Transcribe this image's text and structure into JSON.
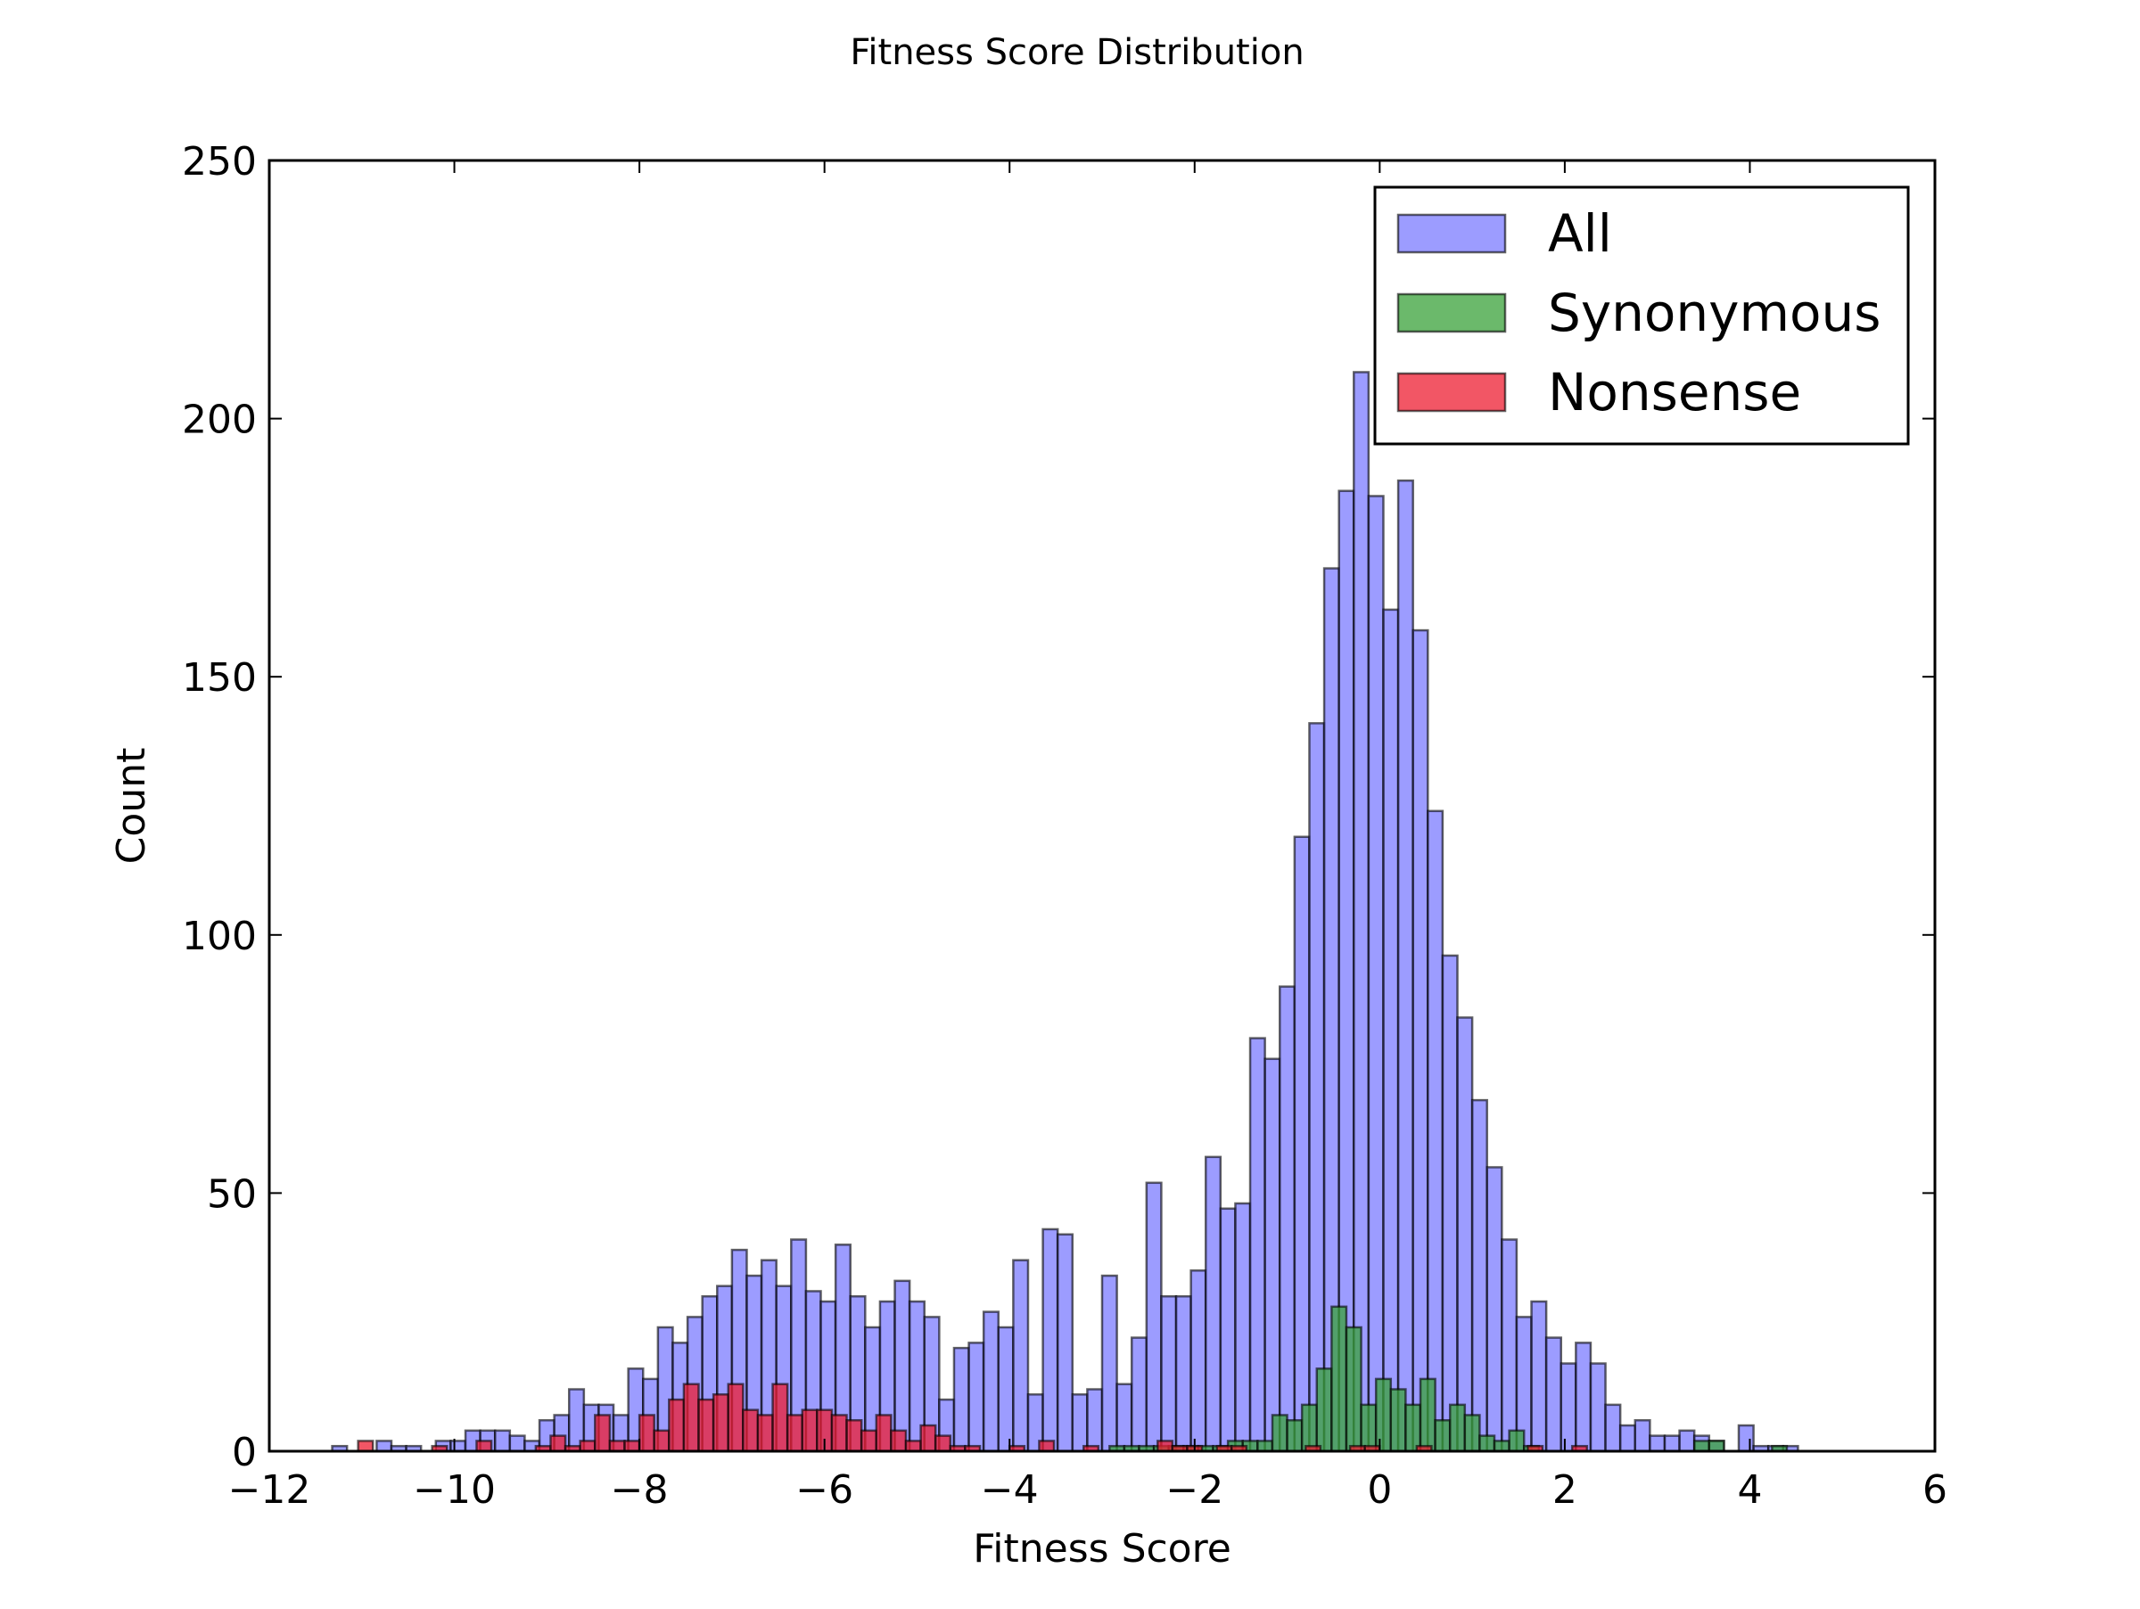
{
  "chart_data": {
    "type": "bar",
    "title": "Fitness Score Distribution",
    "xlabel": "Fitness Score",
    "ylabel": "Count",
    "xlim": [
      -12,
      6
    ],
    "ylim": [
      0,
      250
    ],
    "xticks": [
      -12,
      -10,
      -8,
      -6,
      -4,
      -2,
      0,
      2,
      4,
      6
    ],
    "xtick_labels": [
      "−12",
      "−10",
      "−8",
      "−6",
      "−4",
      "−2",
      "0",
      "2",
      "4",
      "6"
    ],
    "yticks": [
      0,
      50,
      100,
      150,
      200,
      250
    ],
    "ytick_labels": [
      "0",
      "50",
      "100",
      "150",
      "200",
      "250"
    ],
    "grid": false,
    "legend_position": "top-right",
    "series": [
      {
        "name": "All",
        "color": "#7b7bff",
        "bars": [
          [
            -11.32,
            -11.16,
            1
          ],
          [
            -10.84,
            -10.68,
            2
          ],
          [
            -10.68,
            -10.52,
            1
          ],
          [
            -10.52,
            -10.36,
            1
          ],
          [
            -10.2,
            -10.04,
            2
          ],
          [
            -10.04,
            -9.88,
            2
          ],
          [
            -9.88,
            -9.72,
            4
          ],
          [
            -9.72,
            -9.56,
            4
          ],
          [
            -9.56,
            -9.4,
            4
          ],
          [
            -9.4,
            -9.24,
            3
          ],
          [
            -9.24,
            -9.08,
            2
          ],
          [
            -9.08,
            -8.92,
            6
          ],
          [
            -8.92,
            -8.76,
            7
          ],
          [
            -8.76,
            -8.6,
            12
          ],
          [
            -8.6,
            -8.44,
            9
          ],
          [
            -8.44,
            -8.28,
            9
          ],
          [
            -8.28,
            -8.12,
            7
          ],
          [
            -8.12,
            -7.96,
            16
          ],
          [
            -7.96,
            -7.8,
            14
          ],
          [
            -7.8,
            -7.64,
            24
          ],
          [
            -7.64,
            -7.48,
            21
          ],
          [
            -7.48,
            -7.32,
            26
          ],
          [
            -7.32,
            -7.16,
            30
          ],
          [
            -7.16,
            -7.0,
            32
          ],
          [
            -7.0,
            -6.84,
            39
          ],
          [
            -6.84,
            -6.68,
            34
          ],
          [
            -6.68,
            -6.52,
            37
          ],
          [
            -6.52,
            -6.36,
            32
          ],
          [
            -6.36,
            -6.2,
            41
          ],
          [
            -6.2,
            -6.04,
            31
          ],
          [
            -6.04,
            -5.88,
            29
          ],
          [
            -5.88,
            -5.72,
            40
          ],
          [
            -5.72,
            -5.56,
            30
          ],
          [
            -5.56,
            -5.4,
            24
          ],
          [
            -5.4,
            -5.24,
            29
          ],
          [
            -5.24,
            -5.08,
            33
          ],
          [
            -5.08,
            -4.92,
            29
          ],
          [
            -4.92,
            -4.76,
            26
          ],
          [
            -4.76,
            -4.6,
            10
          ],
          [
            -4.6,
            -4.44,
            20
          ],
          [
            -4.44,
            -4.28,
            21
          ],
          [
            -4.28,
            -4.12,
            27
          ],
          [
            -4.12,
            -3.96,
            24
          ],
          [
            -3.96,
            -3.8,
            37
          ],
          [
            -3.8,
            -3.64,
            11
          ],
          [
            -3.64,
            -3.48,
            43
          ],
          [
            -3.48,
            -3.32,
            42
          ],
          [
            -3.32,
            -3.16,
            11
          ],
          [
            -3.16,
            -3.0,
            12
          ],
          [
            -3.0,
            -2.84,
            34
          ],
          [
            -2.84,
            -2.68,
            13
          ],
          [
            -2.68,
            -2.52,
            22
          ],
          [
            -2.52,
            -2.36,
            52
          ],
          [
            -2.36,
            -2.2,
            30
          ],
          [
            -2.2,
            -2.04,
            30
          ],
          [
            -2.04,
            -1.88,
            35
          ],
          [
            -1.88,
            -1.72,
            57
          ],
          [
            -1.72,
            -1.56,
            47
          ],
          [
            -1.56,
            -1.4,
            48
          ],
          [
            -1.4,
            -1.24,
            80
          ],
          [
            -1.24,
            -1.08,
            76
          ],
          [
            -1.08,
            -0.92,
            90
          ],
          [
            -0.92,
            -0.76,
            119
          ],
          [
            -0.76,
            -0.6,
            141
          ],
          [
            -0.6,
            -0.44,
            171
          ],
          [
            -0.44,
            -0.28,
            186
          ],
          [
            -0.28,
            -0.12,
            209
          ],
          [
            -0.12,
            0.04,
            185
          ],
          [
            0.04,
            0.2,
            163
          ],
          [
            0.2,
            0.36,
            188
          ],
          [
            0.36,
            0.52,
            159
          ],
          [
            0.52,
            0.68,
            124
          ],
          [
            0.68,
            0.84,
            96
          ],
          [
            0.84,
            1.0,
            84
          ],
          [
            1.0,
            1.16,
            68
          ],
          [
            1.16,
            1.32,
            55
          ],
          [
            1.32,
            1.48,
            41
          ],
          [
            1.48,
            1.64,
            26
          ],
          [
            1.64,
            1.8,
            29
          ],
          [
            1.8,
            1.96,
            22
          ],
          [
            1.96,
            2.12,
            17
          ],
          [
            2.12,
            2.28,
            21
          ],
          [
            2.28,
            2.44,
            17
          ],
          [
            2.44,
            2.6,
            9
          ],
          [
            2.6,
            2.76,
            5
          ],
          [
            2.76,
            2.92,
            6
          ],
          [
            2.92,
            3.08,
            3
          ],
          [
            3.08,
            3.24,
            3
          ],
          [
            3.24,
            3.4,
            4
          ],
          [
            3.4,
            3.56,
            3
          ],
          [
            3.56,
            3.72,
            2
          ],
          [
            3.88,
            4.04,
            5
          ],
          [
            4.04,
            4.2,
            1
          ],
          [
            4.2,
            4.36,
            1
          ],
          [
            4.36,
            4.52,
            1
          ]
        ]
      },
      {
        "name": "Synonymous",
        "color": "#3aa13a",
        "bars": [
          [
            -2.92,
            -2.76,
            1
          ],
          [
            -2.76,
            -2.6,
            1
          ],
          [
            -2.6,
            -2.44,
            1
          ],
          [
            -2.44,
            -2.28,
            1
          ],
          [
            -2.28,
            -2.12,
            1
          ],
          [
            -2.12,
            -1.96,
            1
          ],
          [
            -1.96,
            -1.8,
            1
          ],
          [
            -1.8,
            -1.64,
            1
          ],
          [
            -1.64,
            -1.48,
            2
          ],
          [
            -1.48,
            -1.32,
            2
          ],
          [
            -1.32,
            -1.16,
            2
          ],
          [
            -1.16,
            -1.0,
            7
          ],
          [
            -1.0,
            -0.84,
            6
          ],
          [
            -0.84,
            -0.68,
            9
          ],
          [
            -0.68,
            -0.52,
            16
          ],
          [
            -0.52,
            -0.36,
            28
          ],
          [
            -0.36,
            -0.2,
            24
          ],
          [
            -0.2,
            -0.04,
            9
          ],
          [
            -0.04,
            0.12,
            14
          ],
          [
            0.12,
            0.28,
            12
          ],
          [
            0.28,
            0.44,
            9
          ],
          [
            0.44,
            0.6,
            14
          ],
          [
            0.6,
            0.76,
            6
          ],
          [
            0.76,
            0.92,
            9
          ],
          [
            0.92,
            1.08,
            7
          ],
          [
            1.08,
            1.24,
            3
          ],
          [
            1.24,
            1.4,
            2
          ],
          [
            1.4,
            1.56,
            4
          ],
          [
            1.56,
            1.72,
            1
          ],
          [
            3.4,
            3.56,
            2
          ],
          [
            3.56,
            3.72,
            2
          ],
          [
            4.24,
            4.4,
            1
          ]
        ]
      },
      {
        "name": "Nonsense",
        "color": "#ee1e32",
        "bars": [
          [
            -11.04,
            -10.88,
            2
          ],
          [
            -10.24,
            -10.08,
            1
          ],
          [
            -9.76,
            -9.6,
            2
          ],
          [
            -9.12,
            -8.96,
            1
          ],
          [
            -8.96,
            -8.8,
            3
          ],
          [
            -8.8,
            -8.64,
            1
          ],
          [
            -8.64,
            -8.48,
            2
          ],
          [
            -8.48,
            -8.32,
            7
          ],
          [
            -8.32,
            -8.16,
            2
          ],
          [
            -8.16,
            -8.0,
            2
          ],
          [
            -8.0,
            -7.84,
            7
          ],
          [
            -7.84,
            -7.68,
            4
          ],
          [
            -7.68,
            -7.52,
            10
          ],
          [
            -7.52,
            -7.36,
            13
          ],
          [
            -7.36,
            -7.2,
            10
          ],
          [
            -7.2,
            -7.04,
            11
          ],
          [
            -7.04,
            -6.88,
            13
          ],
          [
            -6.88,
            -6.72,
            8
          ],
          [
            -6.72,
            -6.56,
            7
          ],
          [
            -6.56,
            -6.4,
            13
          ],
          [
            -6.4,
            -6.24,
            7
          ],
          [
            -6.24,
            -6.08,
            8
          ],
          [
            -6.08,
            -5.92,
            8
          ],
          [
            -5.92,
            -5.76,
            7
          ],
          [
            -5.76,
            -5.6,
            6
          ],
          [
            -5.6,
            -5.44,
            4
          ],
          [
            -5.44,
            -5.28,
            7
          ],
          [
            -5.28,
            -5.12,
            4
          ],
          [
            -5.12,
            -4.96,
            2
          ],
          [
            -4.96,
            -4.8,
            5
          ],
          [
            -4.8,
            -4.64,
            3
          ],
          [
            -4.64,
            -4.48,
            1
          ],
          [
            -4.48,
            -4.32,
            1
          ],
          [
            -4.0,
            -3.84,
            1
          ],
          [
            -3.68,
            -3.52,
            2
          ],
          [
            -3.2,
            -3.04,
            1
          ],
          [
            -2.4,
            -2.24,
            2
          ],
          [
            -2.24,
            -2.08,
            1
          ],
          [
            -2.08,
            -1.92,
            1
          ],
          [
            -1.76,
            -1.6,
            1
          ],
          [
            -1.6,
            -1.44,
            1
          ],
          [
            -0.8,
            -0.64,
            1
          ],
          [
            -0.32,
            -0.16,
            1
          ],
          [
            -0.16,
            0.0,
            1
          ],
          [
            0.4,
            0.56,
            1
          ],
          [
            1.6,
            1.76,
            1
          ],
          [
            2.08,
            2.24,
            1
          ]
        ]
      }
    ]
  }
}
